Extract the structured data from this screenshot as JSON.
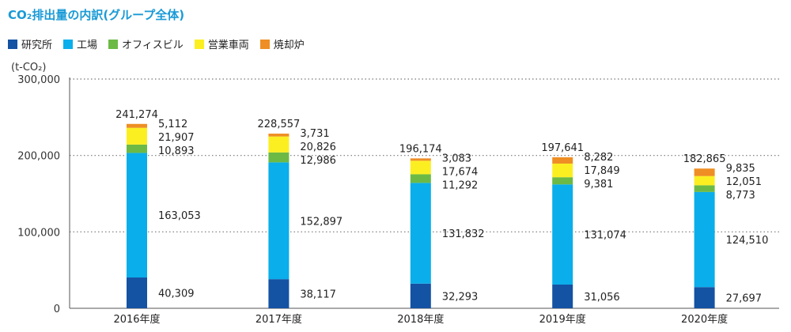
{
  "title": "CO₂排出量の内訳(グループ全体)",
  "chart_data": {
    "type": "bar",
    "stacked": true,
    "unit_label": "(t-CO₂)",
    "categories": [
      "2016年度",
      "2017年度",
      "2018年度",
      "2019年度",
      "2020年度"
    ],
    "series": [
      {
        "name": "研究所",
        "color": "#1452a3",
        "values": [
          40309,
          38117,
          32293,
          31056,
          27697
        ]
      },
      {
        "name": "工場",
        "color": "#0aaeea",
        "values": [
          163053,
          152897,
          131832,
          131074,
          124510
        ]
      },
      {
        "name": "オフィスビル",
        "color": "#6cba45",
        "values": [
          10893,
          12986,
          11292,
          9381,
          8773
        ]
      },
      {
        "name": "営業車両",
        "color": "#fbef22",
        "values": [
          21907,
          20826,
          17674,
          17849,
          12051
        ]
      },
      {
        "name": "焼却炉",
        "color": "#ee8e24",
        "values": [
          5112,
          3731,
          3083,
          8282,
          9835
        ]
      }
    ],
    "totals": [
      241274,
      228557,
      196174,
      197641,
      182865
    ],
    "ylim": [
      0,
      300000
    ],
    "yticks": [
      0,
      100000,
      200000,
      300000
    ],
    "grid": "dotted-horizontal"
  }
}
